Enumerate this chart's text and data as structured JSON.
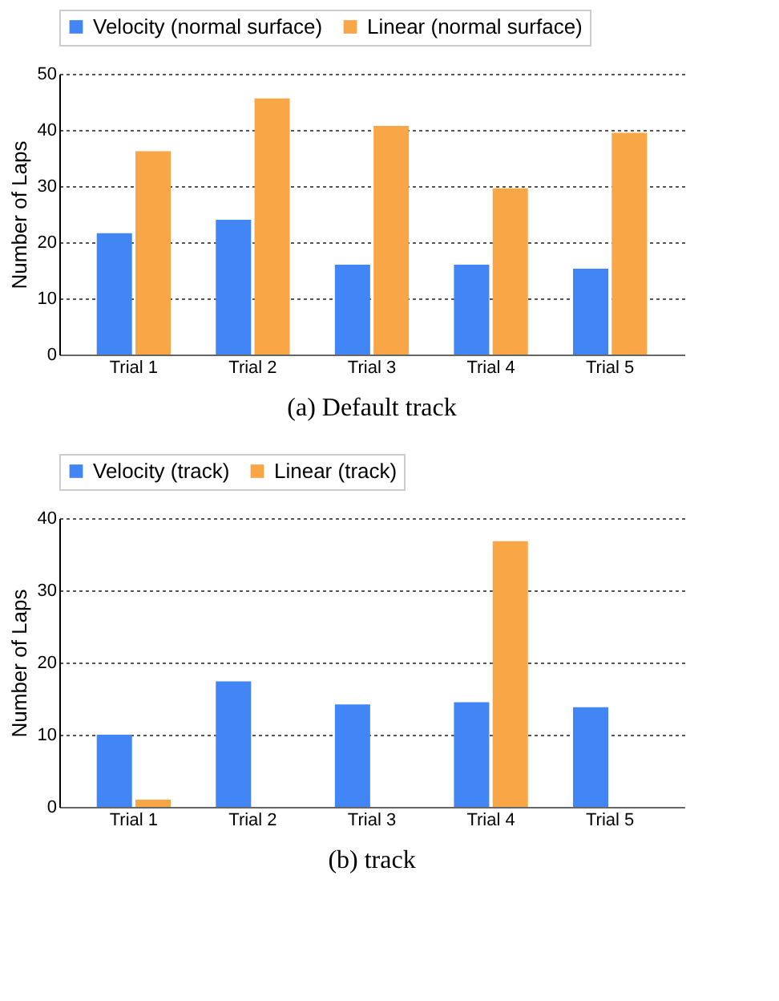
{
  "chart_data": [
    {
      "type": "bar",
      "title": "(a) Default track",
      "ylabel": "Number of Laps",
      "categories": [
        "Trial 1",
        "Trial 2",
        "Trial 3",
        "Trial 4",
        "Trial 5"
      ],
      "series": [
        {
          "name": "Velocity (normal surface)",
          "color": "#4285f4",
          "values": [
            21.6,
            24.0,
            16.0,
            16.0,
            15.3
          ]
        },
        {
          "name": "Linear (normal surface)",
          "color": "#f9a646",
          "values": [
            36.2,
            45.6,
            40.7,
            29.6,
            39.5
          ]
        }
      ],
      "ylim": [
        0,
        50
      ],
      "yticks": [
        0,
        10,
        20,
        30,
        40,
        50
      ],
      "grid": "y",
      "legend": "top"
    },
    {
      "type": "bar",
      "title": "(b) track",
      "ylabel": "Number of Laps",
      "categories": [
        "Trial 1",
        "Trial 2",
        "Trial 3",
        "Trial 4",
        "Trial 5"
      ],
      "series": [
        {
          "name": "Velocity (track)",
          "color": "#4285f4",
          "values": [
            10.0,
            17.4,
            14.2,
            14.5,
            13.8
          ]
        },
        {
          "name": "Linear (track)",
          "color": "#f9a646",
          "values": [
            1.0,
            0,
            0,
            36.8,
            0
          ]
        }
      ],
      "ylim": [
        0,
        40
      ],
      "yticks": [
        0,
        10,
        20,
        30,
        40
      ],
      "grid": "y",
      "legend": "top"
    }
  ]
}
